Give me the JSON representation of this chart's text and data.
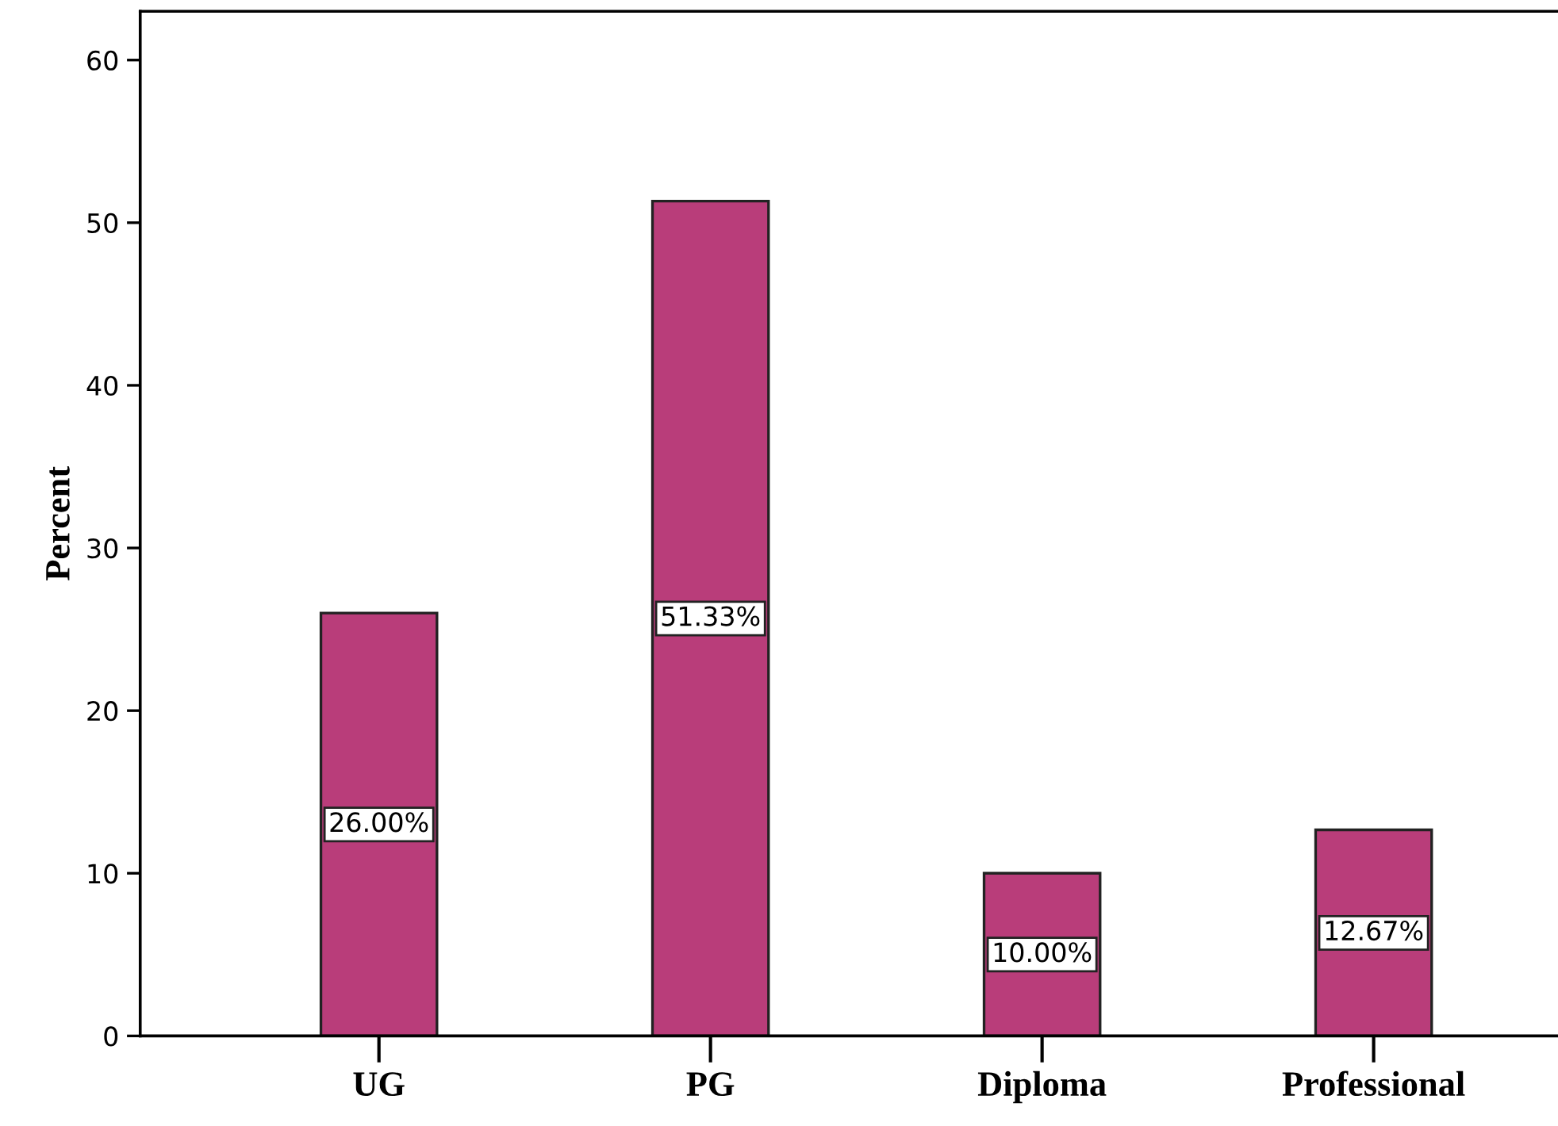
{
  "chart_data": {
    "type": "bar",
    "ylabel": "Percent",
    "categories": [
      "UG",
      "PG",
      "Diploma",
      "Professional"
    ],
    "values": [
      26.0,
      51.33,
      10.0,
      12.67
    ],
    "value_labels": [
      "26.00%",
      "51.33%",
      "10.00%",
      "12.67%"
    ],
    "color": "#b93d7a",
    "ylim": [
      0,
      63
    ],
    "yticks": [
      0,
      10,
      20,
      30,
      40,
      50,
      60
    ],
    "grid": false,
    "legend": false
  }
}
